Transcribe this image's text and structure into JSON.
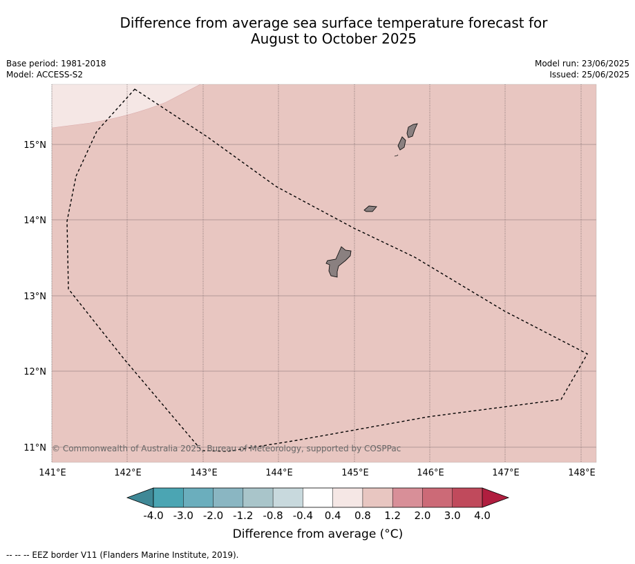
{
  "title": {
    "line1": "Difference from average sea surface temperature forecast for",
    "line2": "August to October 2025"
  },
  "meta": {
    "base_period": "Base period: 1981-2018",
    "model": "Model: ACCESS-S2",
    "model_run": "Model run: 23/06/2025",
    "issued": "Issued: 25/06/2025"
  },
  "copyright": "© Commonwealth of Australia 2025, Bureau of Meteorology, supported by COSPPac",
  "map": {
    "lon_labels": [
      "141°E",
      "142°E",
      "143°E",
      "144°E",
      "145°E",
      "146°E",
      "147°E",
      "148°E"
    ],
    "lat_labels": [
      "15°N",
      "14°N",
      "13°N",
      "12°N",
      "11°N"
    ],
    "background_anomaly_band": "0.8 to 1.2",
    "corner_anomaly_band": "0.4 to 0.8",
    "colors": {
      "band_0.8_1.2": "#e8c6c1",
      "band_0.4_0.8": "#f5e7e5",
      "land": "#8a8080"
    }
  },
  "colorbar": {
    "title": "Difference from average (°C)",
    "tick_labels": [
      "-4.0",
      "-3.0",
      "-2.0",
      "-1.2",
      "-0.8",
      "-0.4",
      "0.4",
      "0.8",
      "1.2",
      "2.0",
      "3.0",
      "4.0"
    ],
    "colors": [
      "#4ba5b3",
      "#6baebd",
      "#8ab6c2",
      "#a9c5ca",
      "#c8d9dd",
      "#ffffff",
      "#f5e7e5",
      "#e8c6c1",
      "#d88f98",
      "#cc6a77",
      "#c04a5c"
    ],
    "under_color": "#3f8896",
    "over_color": "#b01e3f"
  },
  "footnote": "--  --  -- EEZ border V11 (Flanders Marine Institute, 2019)."
}
